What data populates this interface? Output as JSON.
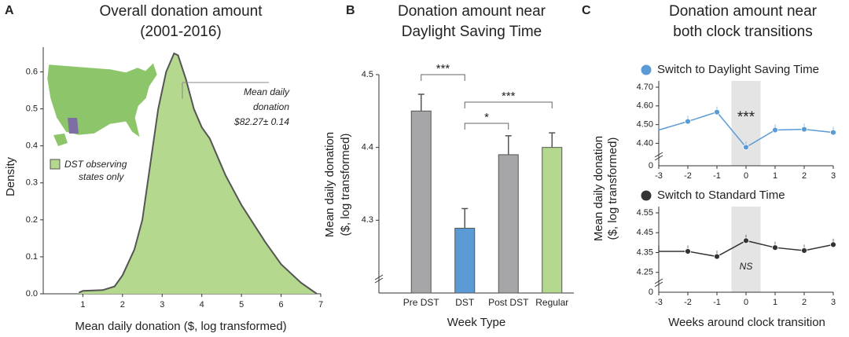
{
  "chart_data": [
    {
      "type": "area",
      "panel": "A",
      "title": [
        "Overall donation amount",
        "(2001-2016)"
      ],
      "xlabel": "Mean daily donation  ($, log transformed)",
      "ylabel": "Density",
      "x": [
        0.9,
        1.0,
        1.5,
        1.8,
        2.0,
        2.3,
        2.5,
        2.7,
        2.9,
        3.1,
        3.3,
        3.4,
        3.6,
        3.8,
        4.0,
        4.2,
        4.4,
        4.6,
        4.8,
        5.0,
        5.3,
        5.6,
        6.0,
        6.5,
        6.9
      ],
      "values": [
        0.003,
        0.008,
        0.01,
        0.02,
        0.05,
        0.12,
        0.2,
        0.35,
        0.5,
        0.6,
        0.65,
        0.645,
        0.58,
        0.5,
        0.45,
        0.42,
        0.37,
        0.32,
        0.28,
        0.24,
        0.19,
        0.14,
        0.08,
        0.03,
        0.0
      ],
      "color": "#b3d88e",
      "line_color": "#555555",
      "xlim": [
        0,
        7
      ],
      "ylim": [
        0,
        0.65
      ],
      "xticks": [
        1,
        2,
        3,
        4,
        5,
        6,
        7
      ],
      "yticks": [
        {
          "value": 0,
          "label": "0.0"
        },
        0.1,
        0.2,
        0.3,
        0.4,
        0.5,
        0.6
      ],
      "annotation": [
        "Mean daily",
        "donation",
        "$82.27± 0.14"
      ],
      "legend": [
        "DST observing",
        "states only"
      ]
    },
    {
      "type": "bar",
      "panel": "B",
      "title": [
        "Donation amount near",
        "Daylight Saving Time"
      ],
      "xlabel": "Week Type",
      "ylabel": [
        "Mean daily donation",
        "($, log transformed)"
      ],
      "categories": [
        "Pre DST",
        "DST",
        "Post DST",
        "Regular"
      ],
      "values": [
        4.45,
        4.289,
        4.39,
        4.4
      ],
      "errors": [
        0.023,
        0.027,
        0.026,
        0.02
      ],
      "colors": [
        "#a6a6a8",
        "#5b9bd5",
        "#a6a6a8",
        "#b3d88e"
      ],
      "ylim": [
        4.2,
        4.5
      ],
      "yticks": [
        4.3,
        4.4,
        4.5
      ],
      "significance": [
        {
          "from": 0,
          "to": 1,
          "label": "***"
        },
        {
          "from": 1,
          "to": 2,
          "label": "*"
        },
        {
          "from": 1,
          "to": 3,
          "label": "***"
        }
      ]
    },
    {
      "type": "line",
      "panel": "C",
      "title": [
        "Donation amount near",
        "both clock transitions"
      ],
      "ylabel": [
        "Mean daily donation",
        "($, log transformed)"
      ],
      "x": [
        -3,
        -2,
        -1,
        0,
        1,
        2,
        3
      ],
      "series": [
        {
          "name": "Switch to Daylight Saving Time",
          "color": "#5b9bd5",
          "values": [
            4.471,
            4.517,
            4.567,
            4.379,
            4.471,
            4.475,
            4.458
          ],
          "errors": [
            0.03,
            0.03,
            0.03,
            0.03,
            0.03,
            0.03,
            0.03
          ]
        }
      ],
      "xlim": [
        -3,
        3
      ],
      "ylim": [
        4.28,
        4.7
      ],
      "xticks": [
        -3,
        -2,
        -1,
        0,
        1,
        2,
        3
      ],
      "yticks": [
        {
          "value": 4.4,
          "label": "4.40"
        },
        {
          "value": 4.5,
          "label": "4.50"
        },
        {
          "value": 4.6,
          "label": "4.60"
        },
        {
          "value": 4.7,
          "label": "4.70"
        }
      ],
      "break_label": "0",
      "highlight": [
        -0.5,
        0.5
      ],
      "annotation": "***"
    },
    {
      "type": "line",
      "xlabel": "Weeks around clock transition",
      "x": [
        -3,
        -2,
        -1,
        0,
        1,
        2,
        3
      ],
      "series": [
        {
          "name": "Switch to Standard Time",
          "color": "#333333",
          "values": [
            4.356,
            4.356,
            4.33,
            4.41,
            4.375,
            4.36,
            4.39
          ],
          "errors": [
            0.03,
            0.03,
            0.03,
            0.03,
            0.03,
            0.03,
            0.03
          ]
        }
      ],
      "xlim": [
        -3,
        3
      ],
      "ylim": [
        4.15,
        4.55
      ],
      "xticks": [
        -3,
        -2,
        -1,
        0,
        1,
        2,
        3
      ],
      "yticks": [
        4.25,
        4.35,
        4.45,
        4.55
      ],
      "break_label": "0",
      "highlight": [
        -0.5,
        0.5
      ],
      "annotation": "NS"
    }
  ]
}
